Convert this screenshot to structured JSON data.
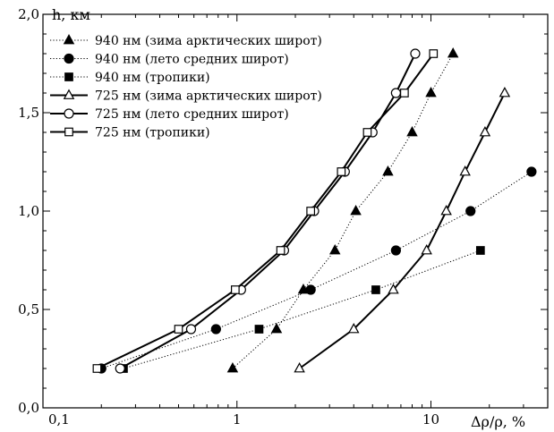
{
  "chart_data": {
    "type": "line",
    "title": "",
    "xlabel": "Δρ/ρ, %",
    "ylabel": "h, км",
    "xscale": "log",
    "xlim": [
      0.1,
      40
    ],
    "ylim": [
      0.0,
      2.0
    ],
    "x_tick_labels": [
      {
        "value": 0.1,
        "label": "0,1"
      },
      {
        "value": 1,
        "label": "1"
      },
      {
        "value": 10,
        "label": "10"
      }
    ],
    "y_tick_labels": [
      {
        "value": 0.0,
        "label": "0,0"
      },
      {
        "value": 0.5,
        "label": "0,5"
      },
      {
        "value": 1.0,
        "label": "1,0"
      },
      {
        "value": 1.5,
        "label": "1,5"
      },
      {
        "value": 2.0,
        "label": "2,0"
      }
    ],
    "grid": false,
    "legend_position": "top-left",
    "series": [
      {
        "name": "940 нм (зима арктических широт)",
        "marker": "triangle",
        "filled": true,
        "line": "dotted",
        "points": [
          [
            0.95,
            0.2
          ],
          [
            1.6,
            0.4
          ],
          [
            2.2,
            0.6
          ],
          [
            3.2,
            0.8
          ],
          [
            4.1,
            1.0
          ],
          [
            6.0,
            1.2
          ],
          [
            8.0,
            1.4
          ],
          [
            10.0,
            1.6
          ],
          [
            13.0,
            1.8
          ]
        ]
      },
      {
        "name": "940 нм (лето средних широт)",
        "marker": "circle",
        "filled": true,
        "line": "dotted",
        "points": [
          [
            0.2,
            0.2
          ],
          [
            0.78,
            0.4
          ],
          [
            2.4,
            0.6
          ],
          [
            6.6,
            0.8
          ],
          [
            16.0,
            1.0
          ],
          [
            33.0,
            1.2
          ]
        ]
      },
      {
        "name": "940 нм (тропики)",
        "marker": "square",
        "filled": true,
        "line": "dotted",
        "points": [
          [
            0.26,
            0.2
          ],
          [
            1.3,
            0.4
          ],
          [
            5.2,
            0.6
          ],
          [
            18.0,
            0.8
          ]
        ]
      },
      {
        "name": "725 нм (зима арктических широт)",
        "marker": "triangle",
        "filled": false,
        "line": "solid",
        "points": [
          [
            2.1,
            0.2
          ],
          [
            4.0,
            0.4
          ],
          [
            6.4,
            0.6
          ],
          [
            9.5,
            0.8
          ],
          [
            12.0,
            1.0
          ],
          [
            15.0,
            1.2
          ],
          [
            19.0,
            1.4
          ],
          [
            24.0,
            1.6
          ]
        ]
      },
      {
        "name": "725 нм (лето средних широт)",
        "marker": "circle",
        "filled": false,
        "line": "solid",
        "points": [
          [
            0.25,
            0.2
          ],
          [
            0.58,
            0.4
          ],
          [
            1.05,
            0.6
          ],
          [
            1.75,
            0.8
          ],
          [
            2.5,
            1.0
          ],
          [
            3.6,
            1.2
          ],
          [
            5.0,
            1.4
          ],
          [
            6.6,
            1.6
          ],
          [
            8.3,
            1.8
          ]
        ]
      },
      {
        "name": "725 нм (тропики)",
        "marker": "square",
        "filled": false,
        "line": "solid",
        "points": [
          [
            0.19,
            0.2
          ],
          [
            0.5,
            0.4
          ],
          [
            0.98,
            0.6
          ],
          [
            1.68,
            0.8
          ],
          [
            2.4,
            1.0
          ],
          [
            3.45,
            1.2
          ],
          [
            4.7,
            1.4
          ],
          [
            7.3,
            1.6
          ],
          [
            10.3,
            1.8
          ]
        ]
      }
    ]
  }
}
